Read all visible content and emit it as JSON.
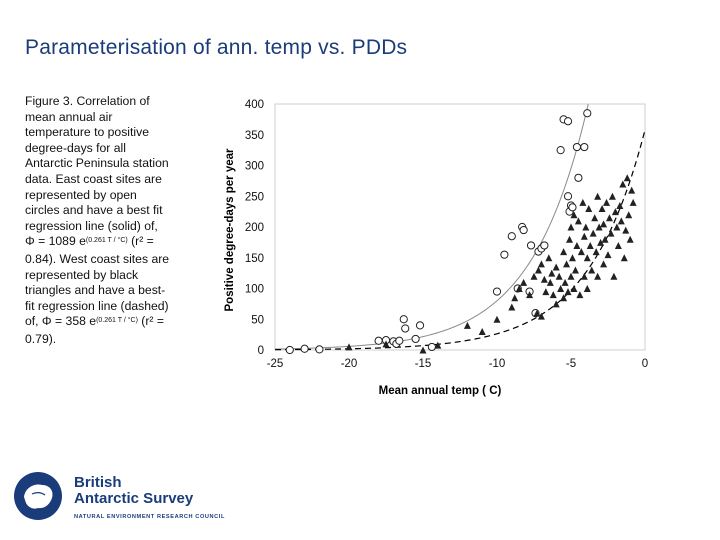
{
  "slide": {
    "title": "Parameterisation of ann. temp vs. PDDs"
  },
  "caption": {
    "part1": "Figure 3.  Correlation of mean annual air temperature to positive degree-days for all Antarctic Peninsula station data.  East coast sites are represented by open circles and have a best fit regression line (solid) of, Φ = 1089 e",
    "exp1": "(0.261 T / °C)",
    "part2": " (r² = 0.84). West coast sites are represented by black triangles and have a best-fit regression line (dashed) of, Φ = 358 e",
    "exp2": "(0.261 T / °C)",
    "part3": " (r² = 0.79)."
  },
  "logo": {
    "line1": "British",
    "line2": "Antarctic Survey",
    "council": "NATURAL ENVIRONMENT RESEARCH COUNCIL"
  },
  "colors": {
    "title": "#1a3c7a",
    "brand": "#1a3c7a",
    "marker": "#222222",
    "solid_line": "#8a8a8a",
    "dashed_line": "#000000"
  },
  "chart_data": {
    "type": "scatter",
    "xlabel": "Mean annual temp ( C)",
    "ylabel": "Positive degree-days per year",
    "xlim": [
      -25,
      0
    ],
    "ylim": [
      0,
      400
    ],
    "xticks": [
      -25,
      -20,
      -15,
      -10,
      -5,
      0
    ],
    "yticks": [
      0,
      50,
      100,
      150,
      200,
      250,
      300,
      350,
      400
    ],
    "series": [
      {
        "name": "East coast sites",
        "marker": "open-circle",
        "fit": {
          "style": "solid",
          "a": 1089,
          "b": 0.261
        },
        "points": [
          [
            -24,
            0
          ],
          [
            -23,
            2
          ],
          [
            -22,
            1
          ],
          [
            -18,
            15
          ],
          [
            -17.5,
            16
          ],
          [
            -17,
            14
          ],
          [
            -16.8,
            10
          ],
          [
            -16.6,
            15
          ],
          [
            -16.3,
            50
          ],
          [
            -16.2,
            35
          ],
          [
            -15.5,
            18
          ],
          [
            -15.2,
            40
          ],
          [
            -14.4,
            5
          ],
          [
            -10,
            95
          ],
          [
            -9.5,
            155
          ],
          [
            -9,
            185
          ],
          [
            -8.6,
            100
          ],
          [
            -8.3,
            200
          ],
          [
            -8.2,
            195
          ],
          [
            -7.8,
            95
          ],
          [
            -7.7,
            170
          ],
          [
            -7.4,
            60
          ],
          [
            -7.2,
            160
          ],
          [
            -7,
            165
          ],
          [
            -6.8,
            170
          ],
          [
            -5.7,
            325
          ],
          [
            -5.5,
            375
          ],
          [
            -5.2,
            372
          ],
          [
            -5.2,
            250
          ],
          [
            -5.1,
            225
          ],
          [
            -5,
            235
          ],
          [
            -4.9,
            232
          ],
          [
            -4.6,
            330
          ],
          [
            -4.5,
            280
          ],
          [
            -4.1,
            330
          ],
          [
            -3.9,
            385
          ]
        ]
      },
      {
        "name": "West coast sites",
        "marker": "filled-triangle",
        "fit": {
          "style": "dashed",
          "a": 358,
          "b": 0.261
        },
        "points": [
          [
            -20,
            5
          ],
          [
            -17.5,
            10
          ],
          [
            -15,
            0
          ],
          [
            -14,
            8
          ],
          [
            -12,
            40
          ],
          [
            -11,
            30
          ],
          [
            -10,
            50
          ],
          [
            -9,
            70
          ],
          [
            -8.8,
            85
          ],
          [
            -8.5,
            100
          ],
          [
            -8.2,
            110
          ],
          [
            -7.8,
            90
          ],
          [
            -7.5,
            120
          ],
          [
            -7.3,
            60
          ],
          [
            -7.2,
            130
          ],
          [
            -7,
            140
          ],
          [
            -7,
            55
          ],
          [
            -6.8,
            115
          ],
          [
            -6.7,
            95
          ],
          [
            -6.5,
            150
          ],
          [
            -6.4,
            110
          ],
          [
            -6.3,
            125
          ],
          [
            -6.2,
            90
          ],
          [
            -6,
            135
          ],
          [
            -6,
            75
          ],
          [
            -5.8,
            120
          ],
          [
            -5.7,
            100
          ],
          [
            -5.5,
            160
          ],
          [
            -5.5,
            85
          ],
          [
            -5.4,
            110
          ],
          [
            -5.3,
            140
          ],
          [
            -5.2,
            95
          ],
          [
            -5.1,
            180
          ],
          [
            -5,
            120
          ],
          [
            -5,
            200
          ],
          [
            -4.9,
            150
          ],
          [
            -4.8,
            100
          ],
          [
            -4.8,
            220
          ],
          [
            -4.7,
            130
          ],
          [
            -4.6,
            170
          ],
          [
            -4.5,
            210
          ],
          [
            -4.4,
            90
          ],
          [
            -4.3,
            160
          ],
          [
            -4.2,
            240
          ],
          [
            -4.1,
            120
          ],
          [
            -4.1,
            185
          ],
          [
            -4,
            200
          ],
          [
            -3.9,
            150
          ],
          [
            -3.9,
            100
          ],
          [
            -3.8,
            230
          ],
          [
            -3.7,
            170
          ],
          [
            -3.6,
            130
          ],
          [
            -3.5,
            190
          ],
          [
            -3.4,
            215
          ],
          [
            -3.3,
            160
          ],
          [
            -3.2,
            250
          ],
          [
            -3.2,
            120
          ],
          [
            -3.1,
            200
          ],
          [
            -3,
            175
          ],
          [
            -2.9,
            230
          ],
          [
            -2.8,
            140
          ],
          [
            -2.8,
            205
          ],
          [
            -2.7,
            180
          ],
          [
            -2.6,
            240
          ],
          [
            -2.5,
            155
          ],
          [
            -2.4,
            215
          ],
          [
            -2.3,
            190
          ],
          [
            -2.2,
            250
          ],
          [
            -2.1,
            120
          ],
          [
            -2,
            225
          ],
          [
            -1.9,
            200
          ],
          [
            -1.8,
            170
          ],
          [
            -1.7,
            235
          ],
          [
            -1.6,
            210
          ],
          [
            -1.5,
            270
          ],
          [
            -1.4,
            150
          ],
          [
            -1.3,
            195
          ],
          [
            -1.2,
            280
          ],
          [
            -1.1,
            220
          ],
          [
            -1,
            180
          ],
          [
            -0.9,
            260
          ],
          [
            -0.8,
            240
          ]
        ]
      }
    ]
  }
}
